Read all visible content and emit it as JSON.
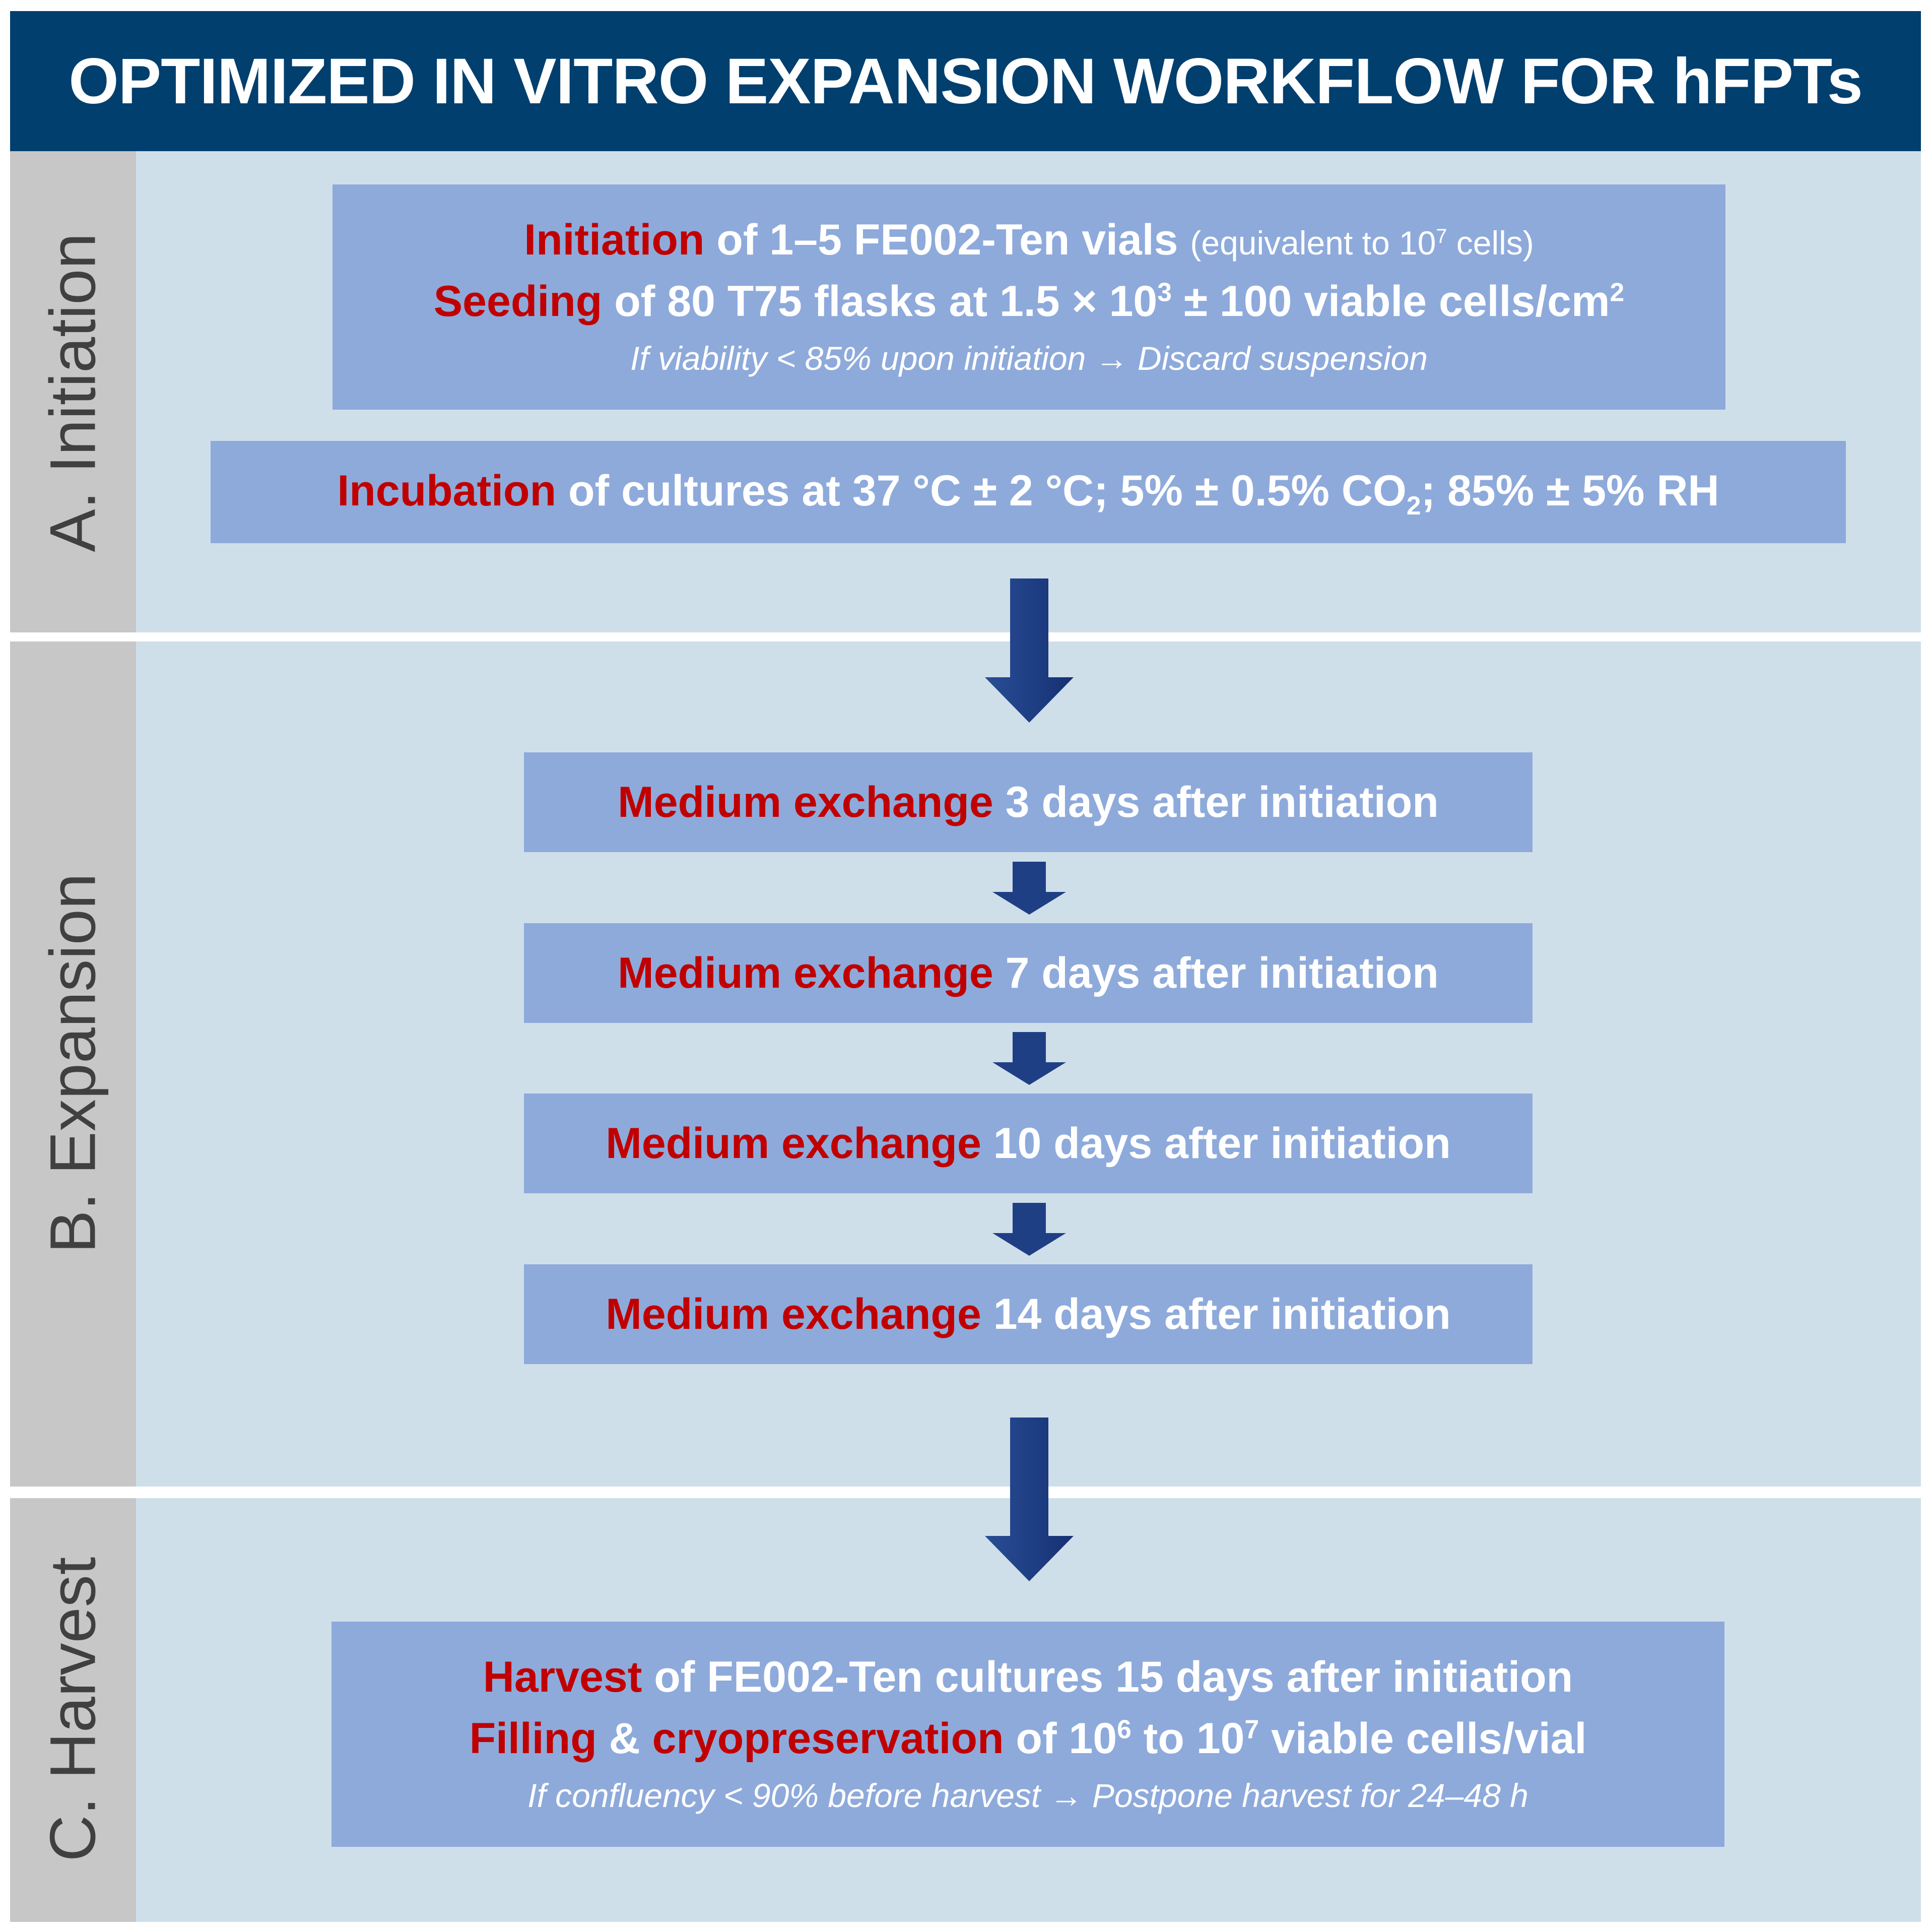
{
  "title": "OPTIMIZED IN VITRO EXPANSION WORKFLOW FOR hFPTs",
  "colors": {
    "banner": "#003f6e",
    "panel": "#cfdfea",
    "side": "#c7c7c7",
    "box": "#8eaadb",
    "highlight": "#c00000",
    "arrow": "#1f3f85"
  },
  "sections": {
    "initiation": {
      "label": "A. Initiation",
      "box1": {
        "l1_red": "Initiation",
        "l1_text": " of 1–5 FE002-Ten vials ",
        "l1_small_a": "(equivalent to 10",
        "l1_small_sup": "7",
        "l1_small_b": " cells)",
        "l2_red": "Seeding",
        "l2_text": " of 80 T75 flasks at 1.5 × 10",
        "l2_sup": "3",
        "l2_text_b": " ± 100 viable cells/cm",
        "l2_sup_b": "2",
        "note": "If viability < 85% upon initiation → Discard suspension"
      },
      "box2": {
        "red": "Incubation",
        "text": " of cultures at 37 °C ± 2 °C; 5% ± 0.5% CO",
        "sub": "2",
        "text_b": "; 85% ± 5% RH"
      }
    },
    "expansion": {
      "label": "B. Expansion",
      "steps": [
        {
          "red": "Medium exchange",
          "text": " 3 days after initiation"
        },
        {
          "red": "Medium exchange",
          "text": " 7 days after initiation"
        },
        {
          "red": "Medium exchange",
          "text": " 10 days after initiation"
        },
        {
          "red": "Medium exchange",
          "text": " 14 days after initiation"
        }
      ]
    },
    "harvest": {
      "label": "C. Harvest",
      "box": {
        "l1_red": "Harvest",
        "l1_text": " of FE002-Ten cultures 15 days after initiation",
        "l2_red": "Filling",
        "l2_amp": " & ",
        "l2_red_b": "cryopreservation",
        "l2_text": " of 10",
        "l2_sup": "6",
        "l2_text_b": " to 10",
        "l2_sup_b": "7",
        "l2_text_c": " viable cells/vial",
        "note": "If confluency < 90% before harvest → Postpone harvest for 24–48 h"
      }
    }
  }
}
